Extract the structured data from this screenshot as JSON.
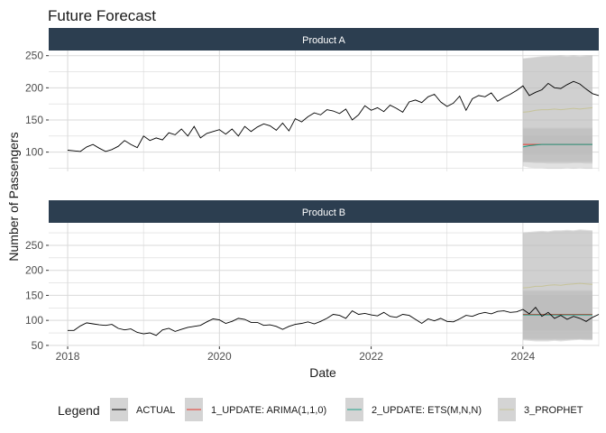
{
  "chart_data": {
    "type": "line",
    "title": "Future Forecast",
    "xlabel": "Date",
    "ylabel": "Number of Passengers",
    "x_ticks": [
      "2018",
      "2020",
      "2022",
      "2024"
    ],
    "x_range": [
      "2017-10",
      "2025-01"
    ],
    "grid": true,
    "legend_position": "bottom",
    "legend_title": "Legend",
    "legend_entries": [
      {
        "label": "ACTUAL",
        "color": "#000000"
      },
      {
        "label": "1_UPDATE: ARIMA(1,1,0)",
        "color": "#e5392d"
      },
      {
        "label": "2_UPDATE: ETS(M,N,N)",
        "color": "#1fa187"
      },
      {
        "label": "3_PROPHET",
        "color": "#c6c399"
      }
    ],
    "colors": {
      "strip_bg": "#2c3e50",
      "actual": "#000000",
      "arima": "#e5392d",
      "ets": "#1fa187",
      "prophet": "#c6c399",
      "band": "#bdbdbd",
      "grid": "#d9d9d9"
    },
    "panels": [
      {
        "title": "Product A",
        "ylim": [
          70,
          258
        ],
        "y_ticks": [
          100,
          150,
          200,
          250
        ],
        "actual": {
          "start": "2018-01",
          "values": [
            103,
            102,
            101,
            108,
            112,
            106,
            101,
            104,
            109,
            118,
            112,
            107,
            125,
            118,
            122,
            119,
            130,
            127,
            136,
            125,
            140,
            122,
            129,
            132,
            135,
            128,
            136,
            125,
            140,
            132,
            139,
            144,
            141,
            134,
            145,
            133,
            152,
            147,
            155,
            161,
            158,
            166,
            164,
            160,
            167,
            150,
            158,
            172,
            165,
            169,
            163,
            173,
            168,
            162,
            178,
            181,
            177,
            186,
            190,
            178,
            171,
            176,
            187,
            165,
            183,
            188,
            186,
            192,
            179,
            185,
            190,
            196,
            203,
            188,
            193,
            197,
            207,
            200,
            199,
            205,
            210,
            206,
            198,
            191,
            188
          ]
        },
        "forecasts": [
          {
            "name": "1_UPDATE: ARIMA(1,1,0)",
            "start": "2024-01",
            "mean": [
              112,
              112,
              112,
              112,
              112,
              112,
              112,
              112,
              112,
              112,
              112,
              112
            ],
            "lo80": [
              98,
              98,
              98,
              98,
              98,
              98,
              98,
              98,
              98,
              98,
              98,
              98
            ],
            "hi80": [
              126,
              126,
              126,
              126,
              126,
              126,
              126,
              126,
              126,
              126,
              126,
              126
            ],
            "lo95": [
              86,
              86,
              86,
              86,
              86,
              86,
              86,
              86,
              86,
              86,
              86,
              86
            ],
            "hi95": [
              138,
              138,
              138,
              138,
              138,
              138,
              138,
              138,
              138,
              138,
              138,
              138
            ]
          },
          {
            "name": "2_UPDATE: ETS(M,N,N)",
            "start": "2024-01",
            "mean": [
              108,
              110,
              111,
              112,
              112,
              112,
              112,
              112,
              112,
              112,
              112,
              112
            ],
            "lo80": [
              96,
              96,
              96,
              96,
              96,
              96,
              96,
              96,
              96,
              96,
              96,
              96
            ],
            "hi80": [
              124,
              124,
              124,
              124,
              124,
              124,
              124,
              124,
              124,
              124,
              124,
              124
            ],
            "lo95": [
              84,
              84,
              84,
              84,
              84,
              84,
              84,
              84,
              84,
              84,
              84,
              84
            ],
            "hi95": [
              136,
              136,
              136,
              136,
              136,
              136,
              136,
              136,
              136,
              136,
              136,
              136
            ]
          },
          {
            "name": "3_PROPHET",
            "start": "2024-01",
            "mean": [
              162,
              163,
              165,
              166,
              166,
              167,
              166,
              167,
              168,
              167,
              168,
              169
            ],
            "lo80": [
              85,
              84,
              83,
              83,
              82,
              82,
              82,
              82,
              83,
              83,
              82,
              82
            ],
            "hi80": [
              245,
              246,
              247,
              248,
              248,
              249,
              249,
              248,
              249,
              248,
              249,
              250
            ],
            "lo95": [
              78,
              76,
              75,
              75,
              74,
              74,
              74,
              75,
              74,
              75,
              74,
              74
            ],
            "hi95": [
              246,
              247,
              248,
              249,
              250,
              250,
              251,
              250,
              251,
              250,
              251,
              251
            ]
          }
        ]
      },
      {
        "title": "Product B",
        "ylim": [
          48,
          295
        ],
        "y_ticks": [
          50,
          100,
          150,
          200,
          250
        ],
        "actual": {
          "start": "2018-01",
          "values": [
            80,
            80,
            89,
            95,
            93,
            91,
            90,
            92,
            84,
            81,
            83,
            76,
            73,
            75,
            70,
            81,
            84,
            78,
            82,
            86,
            88,
            90,
            97,
            103,
            101,
            94,
            98,
            104,
            102,
            96,
            96,
            90,
            91,
            88,
            82,
            88,
            92,
            94,
            97,
            93,
            98,
            104,
            112,
            110,
            104,
            119,
            112,
            114,
            111,
            109,
            116,
            108,
            106,
            112,
            110,
            102,
            94,
            103,
            99,
            104,
            98,
            97,
            103,
            110,
            108,
            113,
            116,
            113,
            118,
            119,
            116,
            117,
            122,
            113,
            126,
            108,
            116,
            104,
            110,
            102,
            108,
            104,
            98,
            106,
            112
          ]
        },
        "forecasts": [
          {
            "name": "1_UPDATE: ARIMA(1,1,0)",
            "start": "2024-01",
            "mean": [
              112,
              112,
              112,
              112,
              112,
              112,
              112,
              112,
              112,
              112,
              112,
              112
            ],
            "lo80": [
              80,
              80,
              80,
              80,
              80,
              80,
              80,
              80,
              80,
              80,
              80,
              80
            ],
            "hi80": [
              150,
              150,
              150,
              150,
              150,
              150,
              150,
              150,
              150,
              150,
              150,
              150
            ],
            "lo95": [
              62,
              62,
              62,
              62,
              62,
              62,
              62,
              62,
              62,
              62,
              62,
              62
            ],
            "hi95": [
              160,
              160,
              160,
              160,
              160,
              160,
              160,
              160,
              160,
              160,
              160,
              160
            ]
          },
          {
            "name": "2_UPDATE: ETS(M,N,N)",
            "start": "2024-01",
            "mean": [
              111,
              111,
              111,
              111,
              111,
              111,
              111,
              111,
              111,
              111,
              111,
              111
            ],
            "lo80": [
              80,
              80,
              80,
              80,
              80,
              80,
              80,
              80,
              80,
              80,
              80,
              80
            ],
            "hi80": [
              148,
              148,
              148,
              148,
              148,
              148,
              148,
              148,
              148,
              148,
              148,
              148
            ],
            "lo95": [
              64,
              64,
              64,
              64,
              64,
              64,
              64,
              64,
              64,
              64,
              64,
              64
            ],
            "hi95": [
              158,
              158,
              158,
              158,
              158,
              158,
              158,
              158,
              158,
              158,
              158,
              158
            ]
          },
          {
            "name": "3_PROPHET",
            "start": "2024-01",
            "mean": [
              165,
              166,
              168,
              168,
              170,
              171,
              170,
              172,
              173,
              174,
              173,
              172
            ],
            "lo80": [
              62,
              61,
              60,
              60,
              60,
              61,
              60,
              61,
              62,
              63,
              62,
              62
            ],
            "hi80": [
              274,
              275,
              276,
              277,
              276,
              278,
              278,
              279,
              278,
              280,
              279,
              278
            ],
            "lo95": [
              60,
              59,
              58,
              58,
              58,
              59,
              58,
              59,
              60,
              61,
              60,
              60
            ],
            "hi95": [
              276,
              277,
              278,
              279,
              278,
              280,
              280,
              281,
              280,
              282,
              281,
              280
            ]
          }
        ]
      }
    ]
  }
}
